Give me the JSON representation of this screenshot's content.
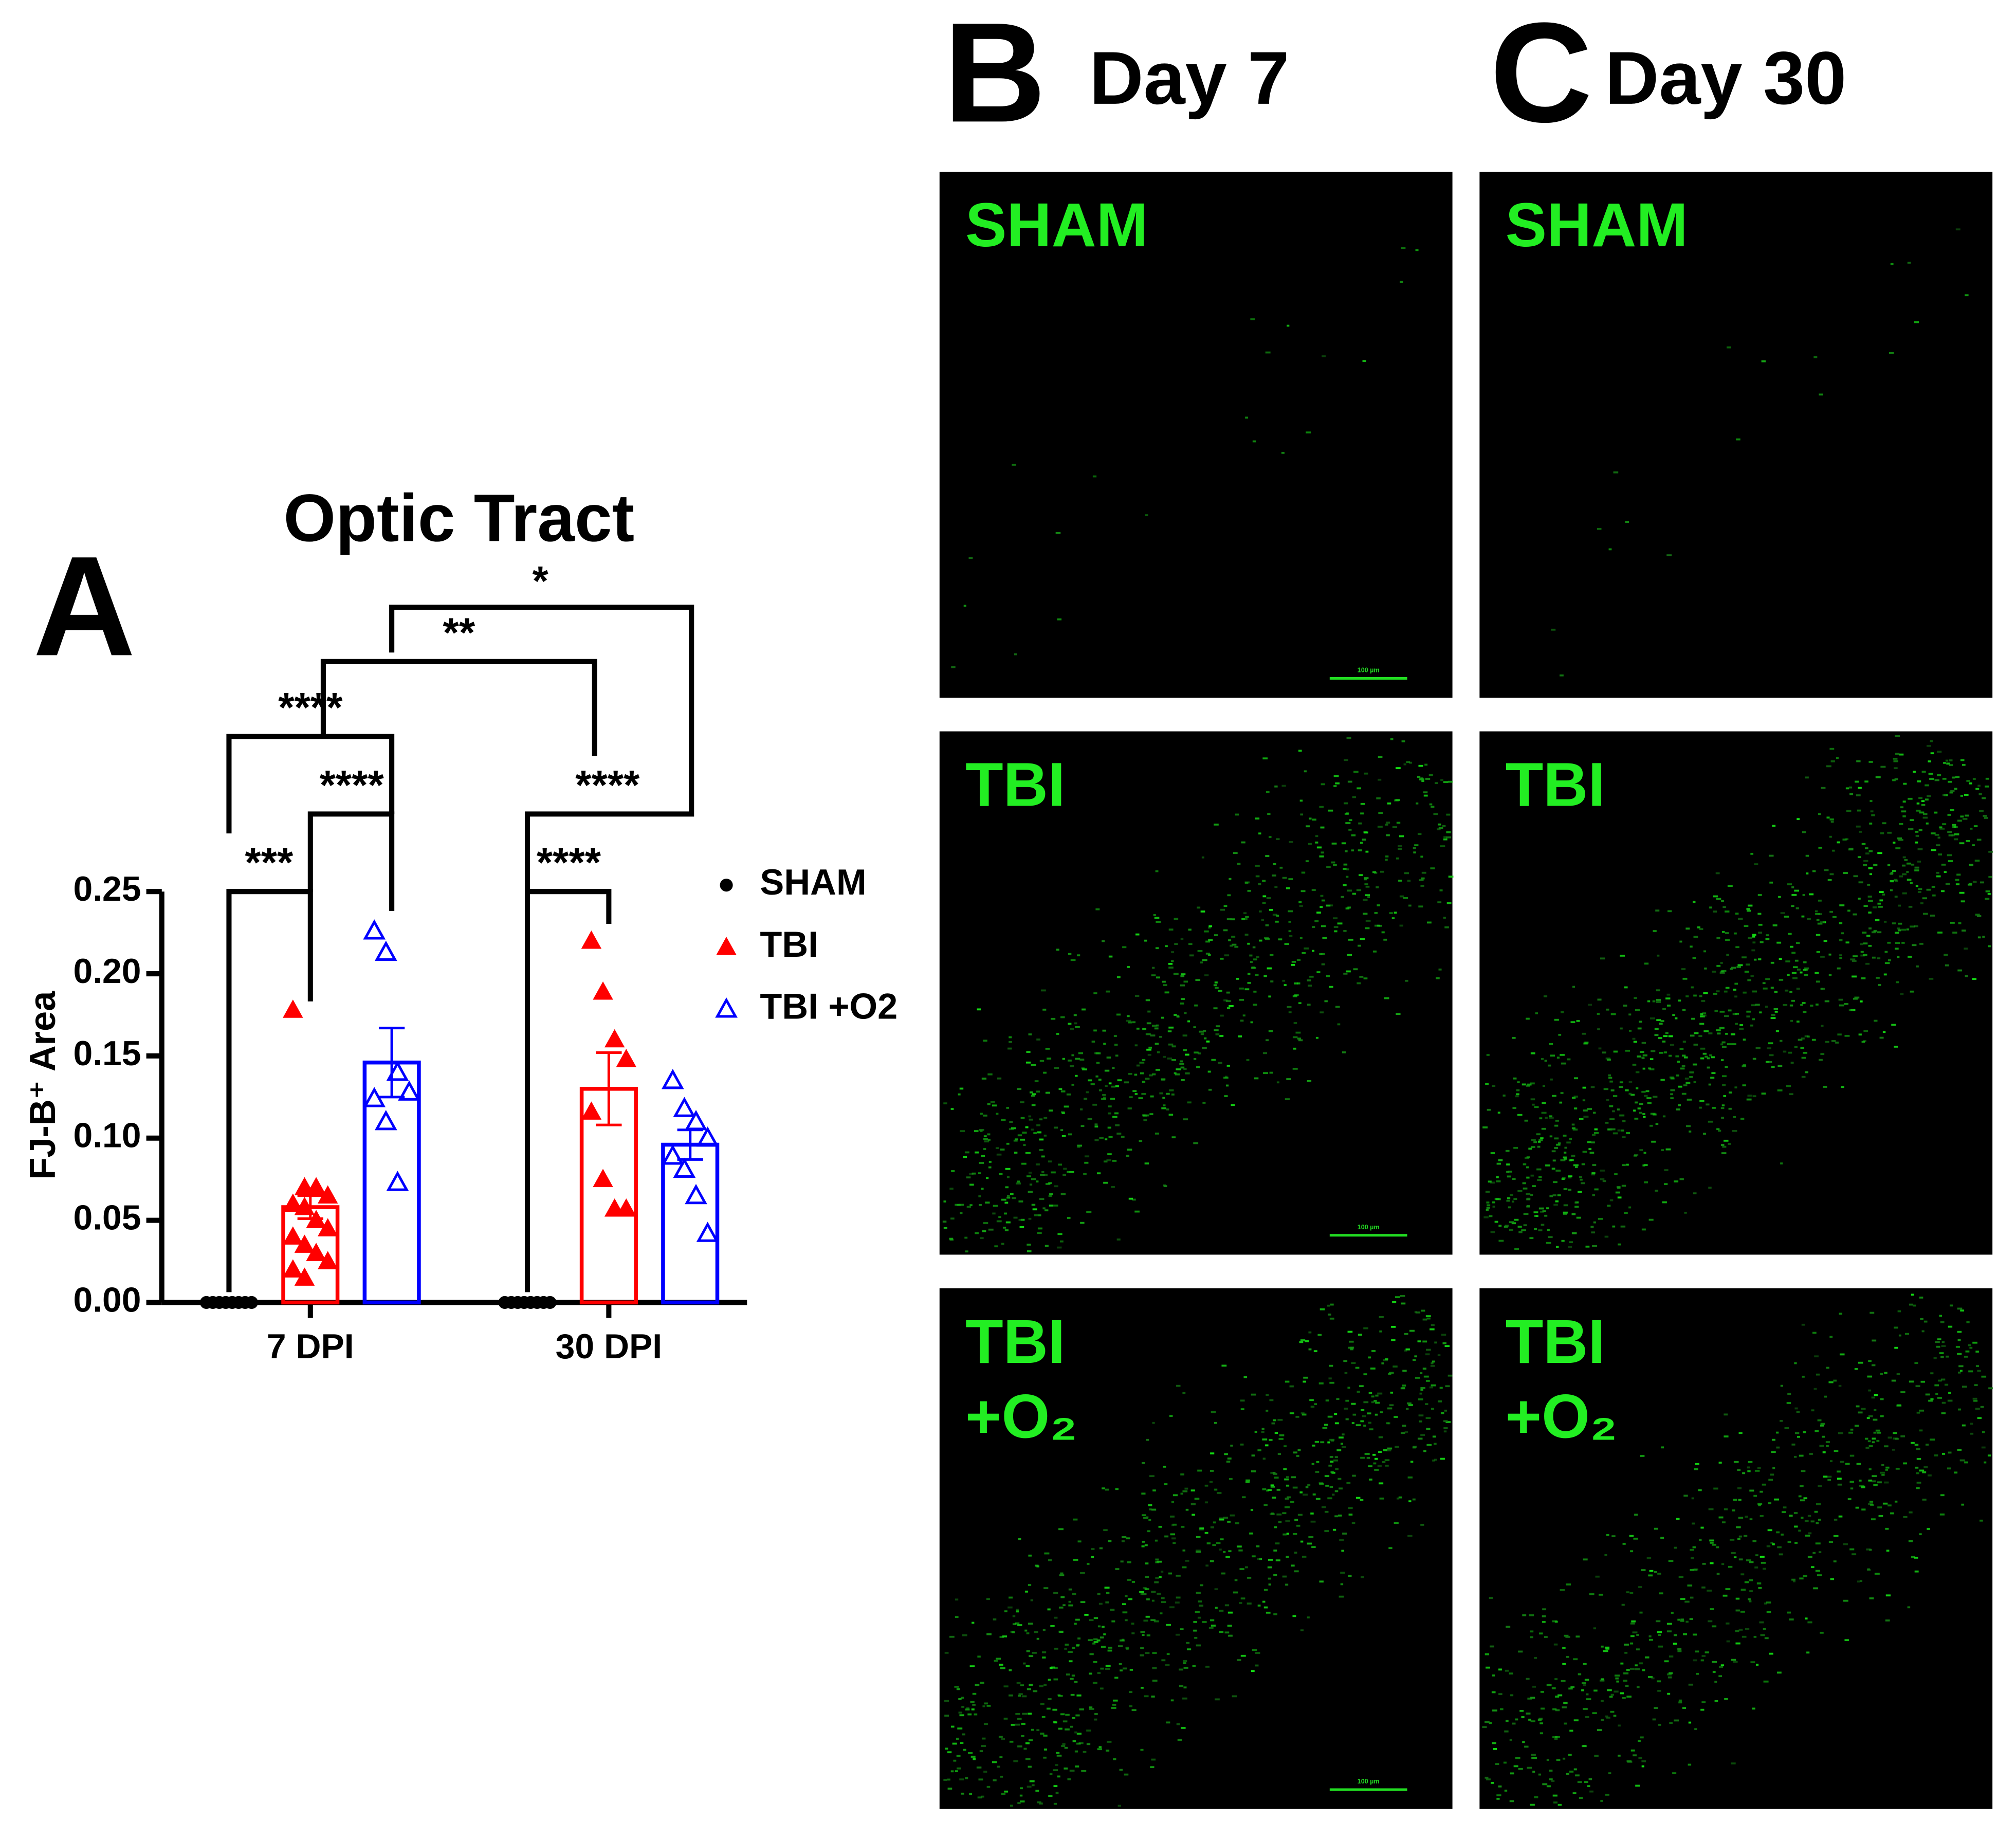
{
  "chart_data": {
    "type": "bar",
    "panel_label": "A",
    "title": "Optic Tract",
    "y_label": "FJ-B⁺ Area",
    "categories": [
      "7 DPI",
      "30 DPI"
    ],
    "ylim": [
      0,
      0.25
    ],
    "yticks": [
      {
        "value": 0,
        "label": "0.00"
      },
      {
        "value": 0.05,
        "label": "0.05"
      },
      {
        "value": 0.1,
        "label": "0.10"
      },
      {
        "value": 0.15,
        "label": "0.15"
      },
      {
        "value": 0.2,
        "label": "0.20"
      },
      {
        "value": 0.25,
        "label": "0.25"
      }
    ],
    "series": [
      {
        "name": "SHAM",
        "color": "#000000",
        "marker": "circle",
        "values": [
          0,
          0
        ],
        "errors": [
          0,
          0
        ],
        "points": [
          [
            0,
            0,
            0,
            0,
            0,
            0,
            0,
            0
          ],
          [
            0,
            0,
            0,
            0,
            0,
            0,
            0,
            0
          ]
        ]
      },
      {
        "name": "TBI",
        "color": "#ff0000",
        "marker": "triangle-filled",
        "values": [
          0.058,
          0.13
        ],
        "errors": [
          0.007,
          0.022
        ],
        "points": [
          [
            0.178,
            0.07,
            0.07,
            0.065,
            0.06,
            0.058,
            0.05,
            0.045,
            0.04,
            0.035,
            0.03,
            0.025,
            0.02,
            0.015
          ],
          [
            0.22,
            0.189,
            0.16,
            0.148,
            0.116,
            0.075,
            0.057,
            0.057
          ]
        ]
      },
      {
        "name": "TBI +O2",
        "color": "#0000ff",
        "marker": "triangle-open",
        "values": [
          0.146,
          0.096
        ],
        "errors": [
          0.021,
          0.009
        ],
        "points": [
          [
            0.226,
            0.213,
            0.14,
            0.128,
            0.124,
            0.11,
            0.073
          ],
          [
            0.135,
            0.118,
            0.11,
            0.1,
            0.089,
            0.081,
            0.065,
            0.042
          ]
        ]
      }
    ],
    "significance": [
      "***",
      "****",
      "****",
      "****",
      "****",
      "**",
      "*"
    ]
  },
  "micrographs": {
    "columns": [
      {
        "letter": "B",
        "title": "Day 7"
      },
      {
        "letter": "C",
        "title": "Day 30"
      }
    ],
    "rows": [
      [
        "SHAM"
      ],
      [
        "TBI"
      ],
      [
        "TBI",
        "+O₂"
      ]
    ],
    "scale_bar": "100 µm"
  }
}
